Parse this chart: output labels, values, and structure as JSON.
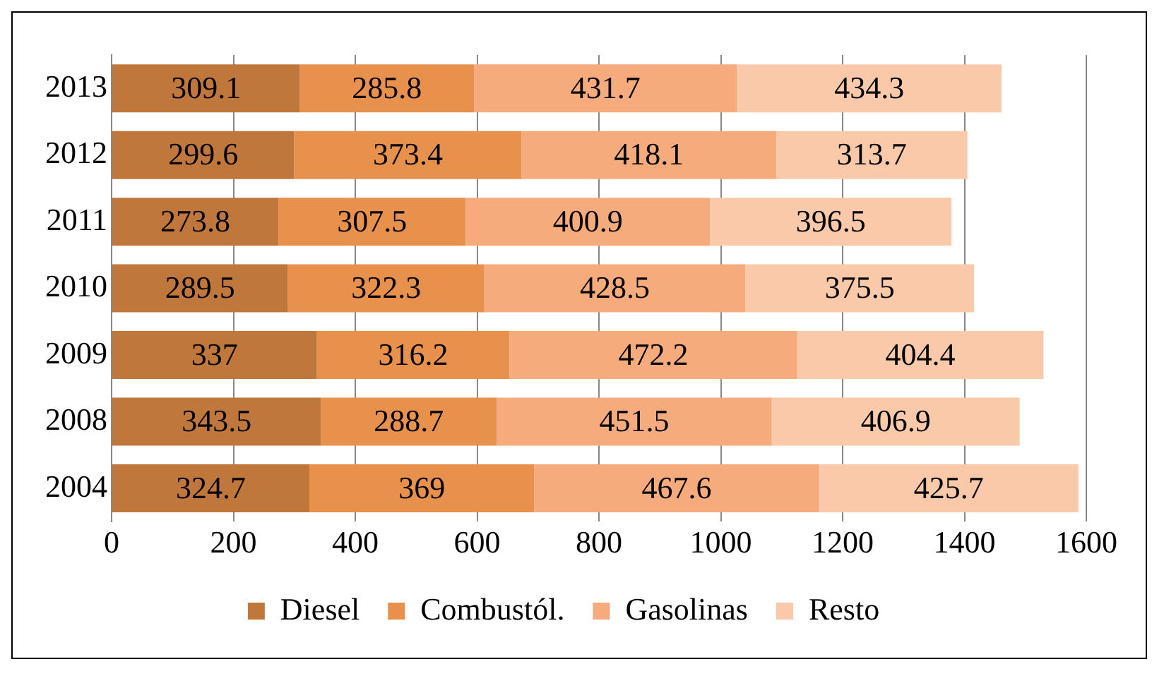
{
  "chart_data": {
    "type": "bar",
    "orientation": "horizontal",
    "stacked": true,
    "categories": [
      "2013",
      "2012",
      "2011",
      "2010",
      "2009",
      "2008",
      "2004"
    ],
    "series": [
      {
        "name": "Diesel",
        "color": "#c0773c",
        "values": [
          309.1,
          299.6,
          273.8,
          289.5,
          337,
          343.5,
          324.7
        ]
      },
      {
        "name": "Combustól.",
        "color": "#e8914c",
        "values": [
          285.8,
          373.4,
          307.5,
          322.3,
          316.2,
          288.7,
          369
        ]
      },
      {
        "name": "Gasolinas",
        "color": "#f5ab7c",
        "values": [
          431.7,
          418.1,
          400.9,
          428.5,
          472.2,
          451.5,
          467.6
        ]
      },
      {
        "name": "Resto",
        "color": "#fac9aa",
        "values": [
          434.3,
          313.7,
          396.5,
          375.5,
          404.4,
          406.9,
          425.7
        ]
      }
    ],
    "xlim": [
      0,
      1600
    ],
    "xticks": [
      0,
      200,
      400,
      600,
      800,
      1000,
      1200,
      1400,
      1600
    ],
    "grid": "x",
    "legend": "bottom",
    "data_labels": true
  }
}
